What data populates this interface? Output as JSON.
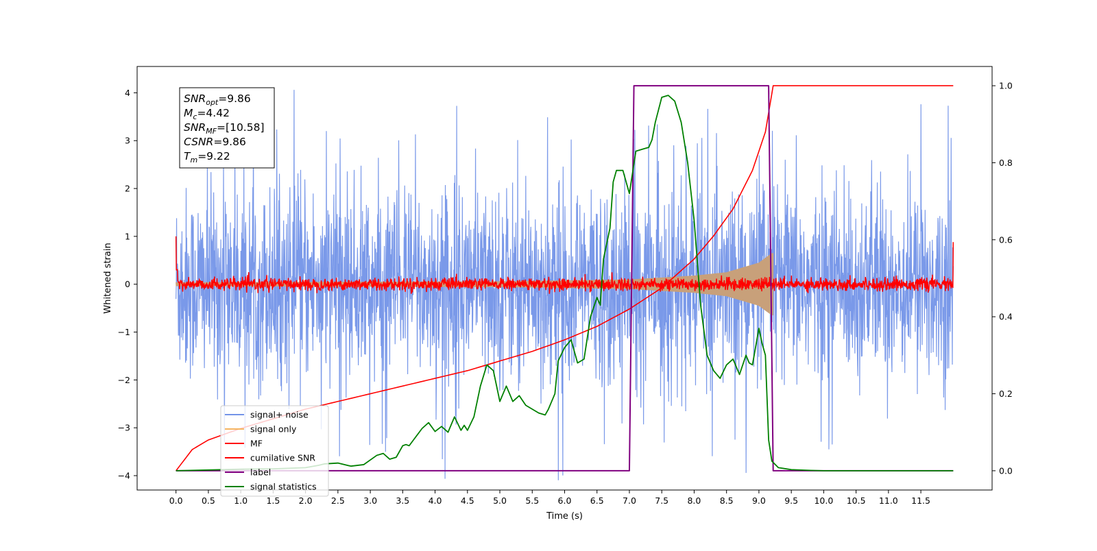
{
  "chart_data": {
    "type": "line",
    "xlabel": "Time (s)",
    "ylabel": "Whitened strain",
    "xlim": [
      -0.6,
      12.6
    ],
    "ylim": [
      -4.3,
      4.55
    ],
    "y2lim": [
      -0.05,
      1.05
    ],
    "x_ticks": [
      0.0,
      0.5,
      1.0,
      1.5,
      2.0,
      2.5,
      3.0,
      3.5,
      4.0,
      4.5,
      5.0,
      5.5,
      6.0,
      6.5,
      7.0,
      7.5,
      8.0,
      8.5,
      9.0,
      9.5,
      10.0,
      10.5,
      11.0,
      11.5
    ],
    "x_tick_labels": [
      "0.0",
      "0.5",
      "1.0",
      "1.5",
      "2.0",
      "2.5",
      "3.0",
      "3.5",
      "4.0",
      "4.5",
      "5.0",
      "5.5",
      "6.0",
      "6.5",
      "7.0",
      "7.5",
      "8.0",
      "8.5",
      "9.0",
      "9.5",
      "10.0",
      "10.5",
      "11.0",
      "11.5"
    ],
    "y_ticks": [
      -4,
      -3,
      -2,
      -1,
      0,
      1,
      2,
      3,
      4
    ],
    "y_tick_labels": [
      "−4",
      "−3",
      "−2",
      "−1",
      "0",
      "1",
      "2",
      "3",
      "4"
    ],
    "y2_ticks": [
      0.0,
      0.2,
      0.4,
      0.6,
      0.8,
      1.0
    ],
    "y2_tick_labels": [
      "0.0",
      "0.2",
      "0.4",
      "0.6",
      "0.8",
      "1.0"
    ],
    "legend_position": "lower-left",
    "grid": false,
    "annotation": {
      "lines": [
        {
          "base": "SNR",
          "sub": "opt",
          "value": "=9.86"
        },
        {
          "base": "M",
          "sub": "c",
          "value": "=4.42"
        },
        {
          "base": "SNR",
          "sub": "MF",
          "value": "=[10.58]"
        },
        {
          "base": "CSNR",
          "sub": "",
          "value": "=9.86"
        },
        {
          "base": "T",
          "sub": "m",
          "value": "=9.22"
        }
      ]
    },
    "series": [
      {
        "name": "signal+ noise",
        "color": "#7393e8",
        "axis": "left",
        "style": "noise",
        "x_range": [
          0.0,
          12.0
        ],
        "amplitude_typical": 1.6,
        "amplitude_max": 4.2
      },
      {
        "name": "signal only",
        "color": "#f5b461",
        "axis": "left",
        "style": "chirp",
        "x_range": [
          0.0,
          9.22
        ],
        "envelope_at": [
          [
            0.0,
            0.04
          ],
          [
            5.0,
            0.06
          ],
          [
            7.0,
            0.1
          ],
          [
            8.0,
            0.18
          ],
          [
            8.5,
            0.25
          ],
          [
            9.0,
            0.45
          ],
          [
            9.2,
            0.65
          ]
        ]
      },
      {
        "name": "MF",
        "color": "#ff0000",
        "axis": "left",
        "style": "noise",
        "x_range": [
          0.0,
          12.0
        ],
        "amplitude_typical": 0.12,
        "edge_values": [
          1.0,
          0.88
        ]
      },
      {
        "name": "cumilative SNR",
        "color": "#ff0000",
        "axis": "right",
        "x": [
          0.0,
          0.25,
          0.5,
          1.0,
          1.5,
          2.0,
          2.5,
          3.0,
          3.5,
          4.0,
          4.5,
          5.0,
          5.5,
          6.0,
          6.5,
          7.0,
          7.5,
          8.0,
          8.3,
          8.6,
          8.9,
          9.1,
          9.22,
          12.0
        ],
        "y": [
          0.0,
          0.055,
          0.08,
          0.11,
          0.135,
          0.16,
          0.18,
          0.2,
          0.22,
          0.24,
          0.26,
          0.285,
          0.31,
          0.34,
          0.375,
          0.42,
          0.475,
          0.55,
          0.61,
          0.68,
          0.78,
          0.88,
          1.0,
          1.0
        ]
      },
      {
        "name": "label",
        "color": "#800080",
        "axis": "right",
        "x": [
          0.0,
          7.0,
          7.07,
          9.15,
          9.22,
          12.0
        ],
        "y": [
          0.0,
          0.0,
          1.0,
          1.0,
          0.0,
          0.0
        ]
      },
      {
        "name": "signal statistics",
        "color": "#008000",
        "axis": "right",
        "x": [
          0.0,
          0.5,
          1.0,
          1.5,
          2.0,
          2.2,
          2.3,
          2.5,
          2.7,
          2.9,
          3.1,
          3.2,
          3.3,
          3.4,
          3.5,
          3.55,
          3.6,
          3.8,
          3.9,
          4.0,
          4.1,
          4.2,
          4.3,
          4.4,
          4.45,
          4.5,
          4.6,
          4.7,
          4.8,
          4.9,
          5.0,
          5.1,
          5.2,
          5.3,
          5.4,
          5.5,
          5.6,
          5.7,
          5.75,
          5.85,
          5.9,
          6.0,
          6.1,
          6.2,
          6.3,
          6.4,
          6.5,
          6.55,
          6.6,
          6.7,
          6.75,
          6.8,
          6.9,
          7.0,
          7.1,
          7.2,
          7.3,
          7.35,
          7.4,
          7.5,
          7.6,
          7.7,
          7.8,
          7.9,
          8.0,
          8.1,
          8.2,
          8.3,
          8.4,
          8.5,
          8.6,
          8.7,
          8.8,
          8.85,
          8.9,
          9.0,
          9.05,
          9.1,
          9.15,
          9.2,
          9.3,
          9.5,
          9.8,
          10.0,
          12.0
        ],
        "y": [
          0.0,
          0.002,
          0.004,
          0.005,
          0.008,
          0.014,
          0.018,
          0.02,
          0.012,
          0.016,
          0.04,
          0.045,
          0.03,
          0.035,
          0.065,
          0.068,
          0.065,
          0.11,
          0.125,
          0.102,
          0.115,
          0.1,
          0.14,
          0.105,
          0.118,
          0.105,
          0.14,
          0.22,
          0.275,
          0.26,
          0.18,
          0.22,
          0.18,
          0.195,
          0.17,
          0.16,
          0.15,
          0.145,
          0.16,
          0.2,
          0.285,
          0.32,
          0.34,
          0.28,
          0.29,
          0.4,
          0.45,
          0.43,
          0.55,
          0.63,
          0.75,
          0.78,
          0.78,
          0.72,
          0.83,
          0.835,
          0.84,
          0.86,
          0.905,
          0.97,
          0.975,
          0.96,
          0.905,
          0.8,
          0.65,
          0.43,
          0.3,
          0.26,
          0.24,
          0.275,
          0.29,
          0.25,
          0.3,
          0.28,
          0.275,
          0.37,
          0.33,
          0.3,
          0.08,
          0.025,
          0.008,
          0.003,
          0.001,
          0.0,
          0.0
        ]
      }
    ]
  }
}
